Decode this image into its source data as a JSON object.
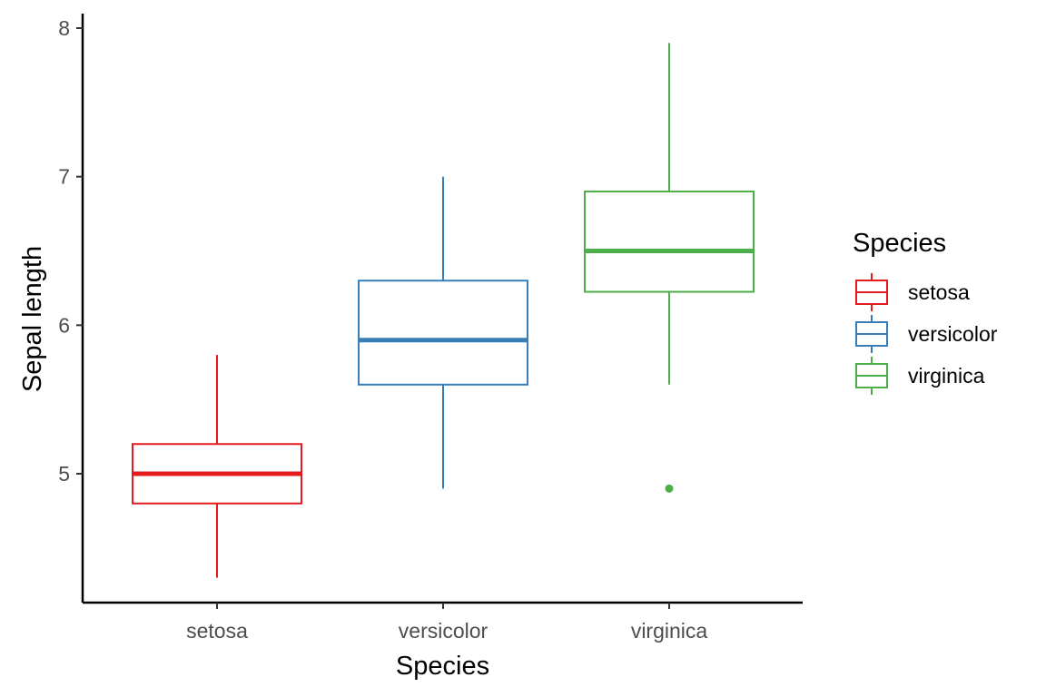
{
  "chart_data": {
    "type": "box",
    "title": "",
    "xlabel": "Species",
    "ylabel": "Sepal length",
    "ylim": [
      4.2,
      8.1
    ],
    "y_ticks": [
      "5",
      "6",
      "7",
      "8"
    ],
    "categories": [
      "setosa",
      "versicolor",
      "virginica"
    ],
    "series": [
      {
        "name": "setosa",
        "color": "#e41a1c",
        "whisker_low": 4.3,
        "q1": 4.8,
        "median": 5.0,
        "q3": 5.2,
        "whisker_high": 5.8,
        "outliers": []
      },
      {
        "name": "versicolor",
        "color": "#377eb8",
        "whisker_low": 4.9,
        "q1": 5.6,
        "median": 5.9,
        "q3": 6.3,
        "whisker_high": 7.0,
        "outliers": []
      },
      {
        "name": "virginica",
        "color": "#4daf4a",
        "whisker_low": 5.6,
        "q1": 6.225,
        "median": 6.5,
        "q3": 6.9,
        "whisker_high": 7.9,
        "outliers": [
          4.9
        ]
      }
    ],
    "grid": false,
    "legend": {
      "title": "Species",
      "position": "right",
      "entries": [
        "setosa",
        "versicolor",
        "virginica"
      ]
    }
  }
}
